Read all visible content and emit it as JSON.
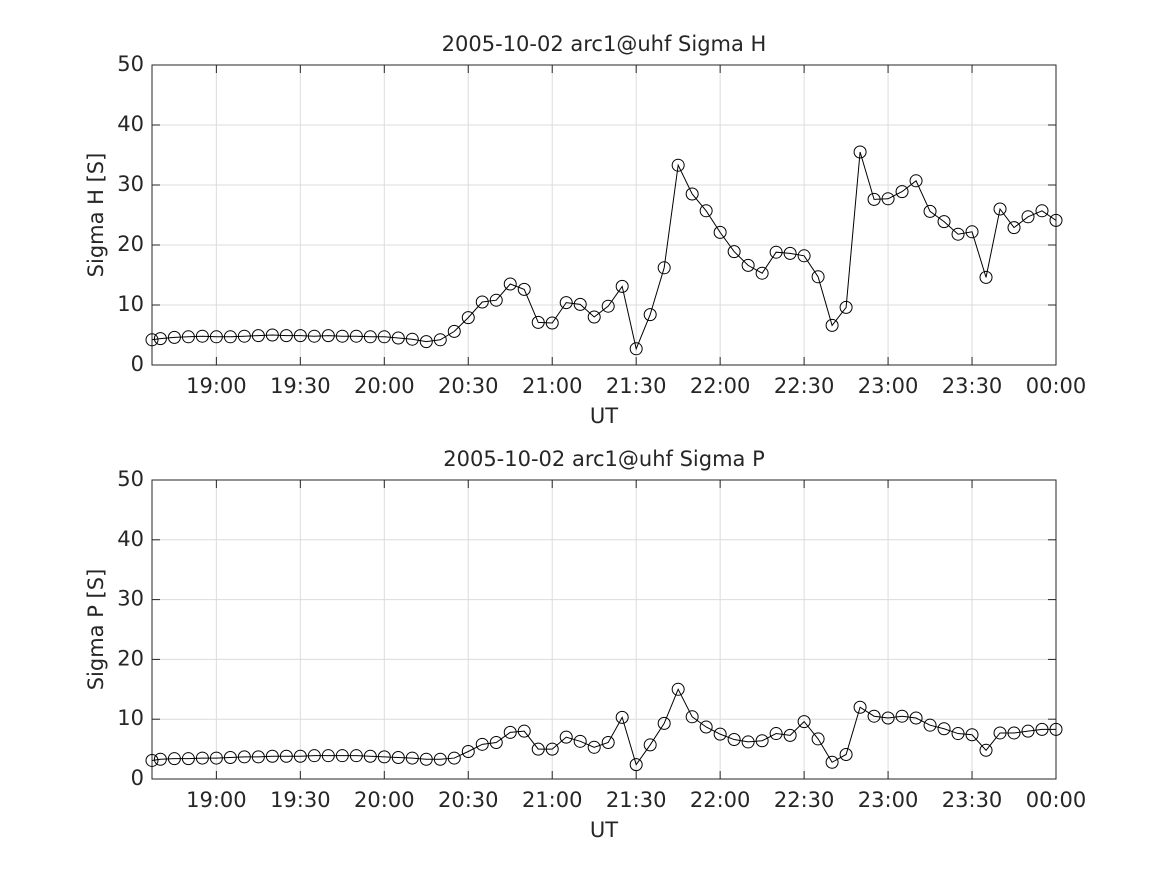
{
  "chart_data": [
    {
      "type": "line",
      "title": "2005-10-02  arc1@uhf Sigma H",
      "xlabel": "UT",
      "ylabel": "Sigma H [S]",
      "x": [
        "18:37",
        "18:40",
        "18:45",
        "18:50",
        "18:55",
        "19:00",
        "19:05",
        "19:10",
        "19:15",
        "19:20",
        "19:25",
        "19:30",
        "19:35",
        "19:40",
        "19:45",
        "19:50",
        "19:55",
        "20:00",
        "20:05",
        "20:10",
        "20:15",
        "20:20",
        "20:25",
        "20:30",
        "20:35",
        "20:40",
        "20:45",
        "20:50",
        "20:55",
        "21:00",
        "21:05",
        "21:10",
        "21:15",
        "21:20",
        "21:25",
        "21:30",
        "21:35",
        "21:40",
        "21:45",
        "21:50",
        "21:55",
        "22:00",
        "22:05",
        "22:10",
        "22:15",
        "22:20",
        "22:25",
        "22:30",
        "22:35",
        "22:40",
        "22:45",
        "22:50",
        "22:55",
        "23:00",
        "23:05",
        "23:10",
        "23:15",
        "23:20",
        "23:25",
        "23:30",
        "23:35",
        "23:40",
        "23:45",
        "23:50",
        "23:55",
        "00:00"
      ],
      "values": [
        4.2,
        4.4,
        4.6,
        4.7,
        4.8,
        4.7,
        4.7,
        4.8,
        4.9,
        5.0,
        4.9,
        4.9,
        4.8,
        4.9,
        4.8,
        4.8,
        4.7,
        4.7,
        4.5,
        4.3,
        3.9,
        4.2,
        5.6,
        7.9,
        10.5,
        10.8,
        13.5,
        12.6,
        7.1,
        7.0,
        10.4,
        10.1,
        8.0,
        9.8,
        13.1,
        2.7,
        8.4,
        16.2,
        33.3,
        28.5,
        25.7,
        22.1,
        18.9,
        16.6,
        15.3,
        18.8,
        18.6,
        18.2,
        14.7,
        6.6,
        9.6,
        35.5,
        27.6,
        27.7,
        28.9,
        30.7,
        25.6,
        23.9,
        21.8,
        22.2,
        14.6,
        26.0,
        22.9,
        24.7,
        25.7,
        24.1
      ],
      "color": "#000000",
      "marker": "circle",
      "xlim": [
        "18:37",
        "00:00"
      ],
      "xticks": [
        "19:00",
        "19:30",
        "20:00",
        "20:30",
        "21:00",
        "21:30",
        "22:00",
        "22:30",
        "23:00",
        "23:30",
        "00:00"
      ],
      "ylim": [
        0,
        50
      ],
      "yticks": [
        0,
        10,
        20,
        30,
        40,
        50
      ],
      "grid": true
    },
    {
      "type": "line",
      "title": "2005-10-02  arc1@uhf Sigma P",
      "xlabel": "UT",
      "ylabel": "Sigma P [S]",
      "x": [
        "18:37",
        "18:40",
        "18:45",
        "18:50",
        "18:55",
        "19:00",
        "19:05",
        "19:10",
        "19:15",
        "19:20",
        "19:25",
        "19:30",
        "19:35",
        "19:40",
        "19:45",
        "19:50",
        "19:55",
        "20:00",
        "20:05",
        "20:10",
        "20:15",
        "20:20",
        "20:25",
        "20:30",
        "20:35",
        "20:40",
        "20:45",
        "20:50",
        "20:55",
        "21:00",
        "21:05",
        "21:10",
        "21:15",
        "21:20",
        "21:25",
        "21:30",
        "21:35",
        "21:40",
        "21:45",
        "21:50",
        "21:55",
        "22:00",
        "22:05",
        "22:10",
        "22:15",
        "22:20",
        "22:25",
        "22:30",
        "22:35",
        "22:40",
        "22:45",
        "22:50",
        "22:55",
        "23:00",
        "23:05",
        "23:10",
        "23:15",
        "23:20",
        "23:25",
        "23:30",
        "23:35",
        "23:40",
        "23:45",
        "23:50",
        "23:55",
        "00:00"
      ],
      "values": [
        3.1,
        3.3,
        3.4,
        3.4,
        3.5,
        3.5,
        3.6,
        3.7,
        3.7,
        3.8,
        3.8,
        3.8,
        3.9,
        3.9,
        3.9,
        3.9,
        3.8,
        3.7,
        3.6,
        3.5,
        3.3,
        3.3,
        3.5,
        4.6,
        5.8,
        6.1,
        7.8,
        8.0,
        5.0,
        5.0,
        7.0,
        6.3,
        5.3,
        6.1,
        10.3,
        2.4,
        5.7,
        9.3,
        15.0,
        10.4,
        8.7,
        7.5,
        6.6,
        6.2,
        6.4,
        7.6,
        7.3,
        9.6,
        6.7,
        2.8,
        4.1,
        12.0,
        10.5,
        10.2,
        10.5,
        10.2,
        9.0,
        8.4,
        7.6,
        7.4,
        4.8,
        7.7,
        7.7,
        8.0,
        8.3,
        8.3
      ],
      "color": "#000000",
      "marker": "circle",
      "xlim": [
        "18:37",
        "00:00"
      ],
      "xticks": [
        "19:00",
        "19:30",
        "20:00",
        "20:30",
        "21:00",
        "21:30",
        "22:00",
        "22:30",
        "23:00",
        "23:30",
        "00:00"
      ],
      "ylim": [
        0,
        50
      ],
      "yticks": [
        0,
        10,
        20,
        30,
        40,
        50
      ],
      "grid": true
    }
  ]
}
